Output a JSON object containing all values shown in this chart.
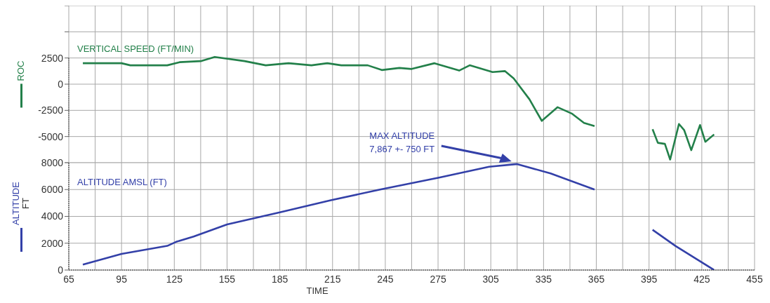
{
  "chart_data": [
    {
      "type": "line",
      "ylabel": "ROC",
      "xlim": [
        65,
        455
      ],
      "ylim": [
        -7500,
        7500
      ],
      "tick_labels": "y",
      "grid": true,
      "marker": "none",
      "xticks": [
        65,
        {
          "value": 80,
          "label": null
        },
        95,
        {
          "value": 110,
          "label": null
        },
        125,
        {
          "value": 140,
          "label": null
        },
        155,
        {
          "value": 170,
          "label": null
        },
        185,
        {
          "value": 200,
          "label": null
        },
        215,
        {
          "value": 230,
          "label": null
        },
        245,
        {
          "value": 260,
          "label": null
        },
        275,
        {
          "value": 290,
          "label": null
        },
        305,
        {
          "value": 320,
          "label": null
        },
        335,
        {
          "value": 350,
          "label": null
        },
        365,
        {
          "value": 380,
          "label": null
        },
        395,
        {
          "value": 410,
          "label": null
        },
        425,
        {
          "value": 440,
          "label": null
        },
        455
      ],
      "yticks": [
        {
          "value": -7500,
          "label": null
        },
        -5000,
        -2500,
        0,
        2500,
        {
          "value": 5000,
          "label": null
        },
        {
          "value": 7500,
          "label": null
        }
      ],
      "series": [
        {
          "name": "VERTICAL SPEED (FT/MIN)",
          "color": "#23804a",
          "x": [
            73,
            95,
            100,
            115,
            121,
            128,
            140,
            148,
            165,
            177,
            190,
            203,
            212,
            220,
            235,
            243,
            253,
            260,
            273,
            287,
            293,
            306,
            313,
            318,
            327,
            334,
            343,
            351,
            358,
            364,
            380,
            397,
            400,
            404,
            407,
            412,
            415,
            419,
            424,
            427,
            432
          ],
          "values": [
            2000,
            2000,
            1800,
            1800,
            1800,
            2100,
            2200,
            2600,
            2200,
            1800,
            2000,
            1800,
            2000,
            1800,
            1800,
            1350,
            1550,
            1450,
            2000,
            1300,
            1800,
            1150,
            1250,
            550,
            -1450,
            -3500,
            -2200,
            -2800,
            -3700,
            -4000,
            null,
            -4300,
            -5600,
            -5700,
            -7200,
            -3800,
            -4400,
            -6300,
            -3900,
            -5500,
            -4800
          ]
        }
      ]
    },
    {
      "type": "line",
      "ylabel": "ALTITUDE\nFT",
      "xlabel": "TIME",
      "xlim": [
        65,
        455
      ],
      "ylim": [
        0,
        8000
      ],
      "grid": true,
      "marker": "none",
      "xticks": [
        65,
        {
          "value": 80,
          "label": null
        },
        95,
        {
          "value": 110,
          "label": null
        },
        125,
        {
          "value": 140,
          "label": null
        },
        155,
        {
          "value": 170,
          "label": null
        },
        185,
        {
          "value": 200,
          "label": null
        },
        215,
        {
          "value": 230,
          "label": null
        },
        245,
        {
          "value": 260,
          "label": null
        },
        275,
        {
          "value": 290,
          "label": null
        },
        305,
        {
          "value": 320,
          "label": null
        },
        335,
        {
          "value": 350,
          "label": null
        },
        365,
        {
          "value": 380,
          "label": null
        },
        395,
        {
          "value": 410,
          "label": null
        },
        425,
        {
          "value": 440,
          "label": null
        },
        455
      ],
      "yticks": [
        0,
        2000,
        4000,
        6000,
        8000
      ],
      "annotations": [
        "MAX ALTITUDE\n7,867 +- 750 FT"
      ],
      "series": [
        {
          "name": "ALTITUDE AMSL (FT)",
          "color": "#3340a8",
          "x": [
            73,
            95,
            121,
            126,
            136,
            155,
            185,
            214,
            242,
            276,
            304,
            320,
            339,
            364,
            380,
            397,
            410,
            432
          ],
          "values": [
            400,
            1200,
            1800,
            2100,
            2500,
            3400,
            4300,
            5200,
            6000,
            6900,
            7700,
            7900,
            7200,
            6000,
            null,
            3000,
            1800,
            0
          ]
        }
      ]
    }
  ]
}
